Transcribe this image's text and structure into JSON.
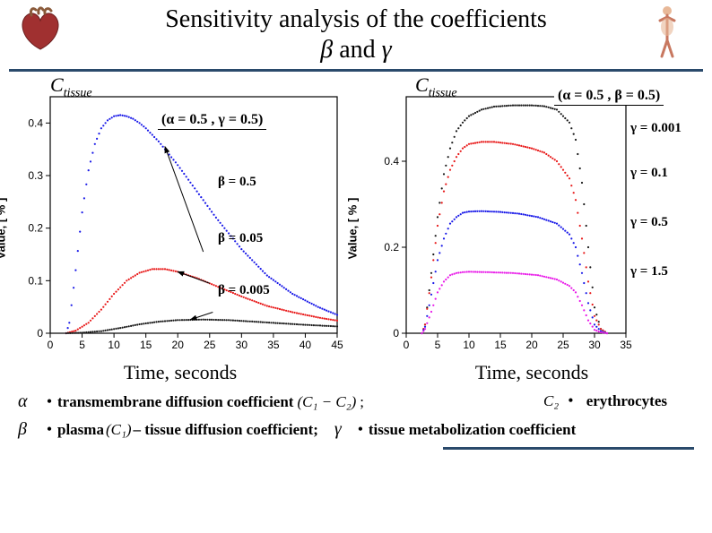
{
  "title_line1": "Sensitivity analysis of the coefficients",
  "title_and": "and",
  "title_beta": "β",
  "title_gamma": "γ",
  "chart_left": {
    "c_label": "C",
    "c_sub": "tissue",
    "ylabel": "Value, [ % ]",
    "xlabel": "Time, seconds",
    "param_box": "(α = 0.5 , γ = 0.5)",
    "curve_labels": [
      "β = 0.5",
      "β = 0.05",
      "β = 0.005"
    ],
    "xlim": [
      0,
      45
    ],
    "ylim": [
      0,
      0.45
    ],
    "xticks": [
      0,
      5,
      10,
      15,
      20,
      25,
      30,
      35,
      40,
      45
    ],
    "yticks": [
      0,
      0.1,
      0.2,
      0.3,
      0.4
    ],
    "series": [
      {
        "color": "#1818e8",
        "name": "beta-0.5",
        "pts": [
          [
            2.5,
            0
          ],
          [
            3,
            0.02
          ],
          [
            4,
            0.12
          ],
          [
            5,
            0.23
          ],
          [
            6,
            0.31
          ],
          [
            7,
            0.36
          ],
          [
            8,
            0.39
          ],
          [
            9,
            0.405
          ],
          [
            10,
            0.413
          ],
          [
            11,
            0.415
          ],
          [
            12,
            0.413
          ],
          [
            13,
            0.408
          ],
          [
            14,
            0.4
          ],
          [
            15,
            0.39
          ],
          [
            17,
            0.365
          ],
          [
            20,
            0.32
          ],
          [
            23,
            0.27
          ],
          [
            26,
            0.22
          ],
          [
            30,
            0.16
          ],
          [
            34,
            0.11
          ],
          [
            38,
            0.075
          ],
          [
            42,
            0.05
          ],
          [
            45,
            0.035
          ]
        ]
      },
      {
        "color": "#e81818",
        "name": "beta-0.05",
        "pts": [
          [
            2.5,
            0
          ],
          [
            4,
            0.005
          ],
          [
            6,
            0.02
          ],
          [
            8,
            0.045
          ],
          [
            10,
            0.075
          ],
          [
            12,
            0.1
          ],
          [
            14,
            0.115
          ],
          [
            16,
            0.122
          ],
          [
            18,
            0.122
          ],
          [
            20,
            0.117
          ],
          [
            23,
            0.105
          ],
          [
            26,
            0.09
          ],
          [
            30,
            0.07
          ],
          [
            34,
            0.052
          ],
          [
            38,
            0.04
          ],
          [
            42,
            0.03
          ],
          [
            45,
            0.024
          ]
        ]
      },
      {
        "color": "#181818",
        "name": "beta-0.005",
        "pts": [
          [
            2.5,
            0
          ],
          [
            5,
            0.001
          ],
          [
            8,
            0.004
          ],
          [
            11,
            0.01
          ],
          [
            14,
            0.017
          ],
          [
            17,
            0.022
          ],
          [
            20,
            0.025
          ],
          [
            24,
            0.026
          ],
          [
            28,
            0.025
          ],
          [
            32,
            0.022
          ],
          [
            36,
            0.019
          ],
          [
            40,
            0.016
          ],
          [
            45,
            0.013
          ]
        ]
      }
    ],
    "arrows": [
      {
        "from": [
          24,
          0.155
        ],
        "to": [
          18,
          0.355
        ]
      },
      {
        "from": [
          25,
          0.095
        ],
        "to": [
          20,
          0.117
        ]
      },
      {
        "from": [
          25.5,
          0.04
        ],
        "to": [
          22,
          0.026
        ]
      }
    ]
  },
  "chart_right": {
    "c_label": "C",
    "c_sub": "tissue",
    "ylabel": "Value, [ % ]",
    "xlabel": "Time, seconds",
    "param_box": "(α = 0.5 , β = 0.5)",
    "curve_labels": [
      "γ = 0.001",
      "γ = 0.1",
      "γ = 0.5",
      "γ = 1.5"
    ],
    "xlim": [
      0,
      35
    ],
    "ylim": [
      0,
      0.55
    ],
    "xticks": [
      0,
      5,
      10,
      15,
      20,
      25,
      30,
      35
    ],
    "yticks": [
      0,
      0.2,
      0.4
    ],
    "series": [
      {
        "color": "#181818",
        "name": "gamma-0.001",
        "pts": [
          [
            2.5,
            0
          ],
          [
            3,
            0.02
          ],
          [
            4,
            0.14
          ],
          [
            5,
            0.27
          ],
          [
            6,
            0.37
          ],
          [
            7,
            0.43
          ],
          [
            8,
            0.47
          ],
          [
            9,
            0.49
          ],
          [
            10,
            0.505
          ],
          [
            12,
            0.52
          ],
          [
            14,
            0.527
          ],
          [
            17,
            0.53
          ],
          [
            20,
            0.53
          ],
          [
            22,
            0.528
          ],
          [
            24,
            0.52
          ],
          [
            26,
            0.49
          ],
          [
            27,
            0.45
          ],
          [
            28,
            0.35
          ],
          [
            29,
            0.2
          ],
          [
            30,
            0.06
          ],
          [
            31,
            0.01
          ],
          [
            32,
            0
          ]
        ]
      },
      {
        "color": "#e81818",
        "name": "gamma-0.1",
        "pts": [
          [
            2.5,
            0
          ],
          [
            3,
            0.02
          ],
          [
            4,
            0.13
          ],
          [
            5,
            0.25
          ],
          [
            6,
            0.33
          ],
          [
            7,
            0.38
          ],
          [
            8,
            0.41
          ],
          [
            9,
            0.43
          ],
          [
            10,
            0.44
          ],
          [
            12,
            0.445
          ],
          [
            14,
            0.445
          ],
          [
            17,
            0.44
          ],
          [
            20,
            0.43
          ],
          [
            22,
            0.42
          ],
          [
            24,
            0.4
          ],
          [
            26,
            0.36
          ],
          [
            27,
            0.31
          ],
          [
            28,
            0.22
          ],
          [
            29,
            0.12
          ],
          [
            30,
            0.04
          ],
          [
            31,
            0.01
          ],
          [
            32,
            0
          ]
        ]
      },
      {
        "color": "#1818e8",
        "name": "gamma-0.5",
        "pts": [
          [
            2.5,
            0
          ],
          [
            3,
            0.015
          ],
          [
            4,
            0.09
          ],
          [
            5,
            0.17
          ],
          [
            6,
            0.22
          ],
          [
            7,
            0.255
          ],
          [
            8,
            0.27
          ],
          [
            9,
            0.28
          ],
          [
            10,
            0.283
          ],
          [
            12,
            0.284
          ],
          [
            15,
            0.282
          ],
          [
            18,
            0.278
          ],
          [
            21,
            0.27
          ],
          [
            24,
            0.255
          ],
          [
            26,
            0.23
          ],
          [
            27,
            0.2
          ],
          [
            28,
            0.14
          ],
          [
            29,
            0.07
          ],
          [
            30,
            0.02
          ],
          [
            31,
            0.005
          ],
          [
            32,
            0
          ]
        ]
      },
      {
        "color": "#e818e8",
        "name": "gamma-1.5",
        "pts": [
          [
            2.5,
            0
          ],
          [
            3,
            0.01
          ],
          [
            4,
            0.05
          ],
          [
            5,
            0.095
          ],
          [
            6,
            0.12
          ],
          [
            7,
            0.135
          ],
          [
            8,
            0.14
          ],
          [
            9,
            0.142
          ],
          [
            10,
            0.143
          ],
          [
            13,
            0.142
          ],
          [
            17,
            0.14
          ],
          [
            21,
            0.135
          ],
          [
            24,
            0.125
          ],
          [
            26,
            0.11
          ],
          [
            27,
            0.095
          ],
          [
            28,
            0.065
          ],
          [
            29,
            0.03
          ],
          [
            30,
            0.008
          ],
          [
            31,
            0.002
          ],
          [
            32,
            0
          ]
        ]
      }
    ]
  },
  "legend": {
    "alpha": "α",
    "beta": "β",
    "gamma_sym": "γ",
    "row1_text": "transmembrane diffusion coefficient",
    "row1_math": "(C₁ − C₂)",
    "row1_semi": ";",
    "row1_right_c2": "C₂",
    "row1_right_bullet": "•",
    "row1_right_text": "erythrocytes",
    "row2_text1": "plasma",
    "row2_math1": "(C₁)",
    "row2_text2": "– tissue diffusion coefficient;",
    "row2_gamma": "γ",
    "row2_bullet2": "•",
    "row2_text3": "tissue metabolization coefficient"
  }
}
